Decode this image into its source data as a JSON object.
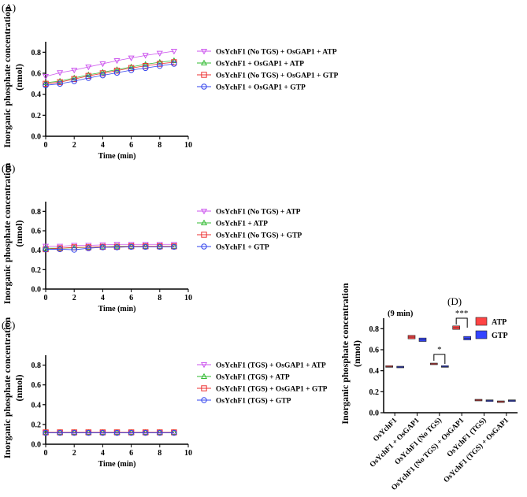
{
  "panel_labels": [
    "(A)",
    "(B)",
    "(C)",
    "(D)"
  ],
  "colors": {
    "purple": "#cc55ee",
    "green": "#33bb33",
    "red": "#ee3333",
    "blue": "#3344ee",
    "bar_red": "#ff4444",
    "bar_blue": "#3344ff"
  },
  "chart_data": [
    {
      "type": "line",
      "xlabel": "Time (min)",
      "ylabel": "Inorganic phosphate concentration (nmol)",
      "xlim": [
        0,
        10
      ],
      "ylim": [
        0,
        0.9
      ],
      "xticks": [
        0,
        2,
        4,
        6,
        8,
        10
      ],
      "yticks": [
        0.0,
        0.2,
        0.4,
        0.6,
        0.8
      ],
      "legend": "right",
      "x": [
        0,
        1,
        2,
        3,
        4,
        5,
        6,
        7,
        8,
        9
      ],
      "series": [
        {
          "name": "OsYchF1 (No TGS) + OsGAP1 + ATP",
          "marker": "triangle-down",
          "color": "#cc55ee",
          "values": [
            0.57,
            0.605,
            0.63,
            0.66,
            0.69,
            0.72,
            0.745,
            0.77,
            0.79,
            0.81
          ]
        },
        {
          "name": "OsYchF1 + OsGAP1 + ATP",
          "marker": "triangle-up",
          "color": "#33bb33",
          "values": [
            0.51,
            0.525,
            0.555,
            0.585,
            0.61,
            0.635,
            0.66,
            0.685,
            0.705,
            0.72
          ]
        },
        {
          "name": "OsYchF1 (No TGS) + OsGAP1 + GTP",
          "marker": "square",
          "color": "#ee3333",
          "values": [
            0.5,
            0.515,
            0.545,
            0.575,
            0.6,
            0.625,
            0.65,
            0.67,
            0.69,
            0.705
          ]
        },
        {
          "name": "OsYchF1 +  OsGAP1 + GTP",
          "marker": "circle",
          "color": "#3344ee",
          "values": [
            0.485,
            0.5,
            0.525,
            0.555,
            0.58,
            0.605,
            0.63,
            0.65,
            0.67,
            0.69
          ]
        }
      ]
    },
    {
      "type": "line",
      "xlabel": "Time (min)",
      "ylabel": "Inorganic phosphate concentration (nmol)",
      "xlim": [
        0,
        10
      ],
      "ylim": [
        0,
        0.9
      ],
      "xticks": [
        0,
        2,
        4,
        6,
        8,
        10
      ],
      "yticks": [
        0.0,
        0.2,
        0.4,
        0.6,
        0.8
      ],
      "legend": "right",
      "x": [
        0,
        1,
        2,
        3,
        4,
        5,
        6,
        7,
        8,
        9
      ],
      "series": [
        {
          "name": "OsYchF1 (No TGS) + ATP",
          "marker": "triangle-down",
          "color": "#cc55ee",
          "values": [
            0.44,
            0.44,
            0.45,
            0.45,
            0.455,
            0.46,
            0.46,
            0.46,
            0.46,
            0.46
          ]
        },
        {
          "name": "OsYchF1 + ATP",
          "marker": "triangle-up",
          "color": "#33bb33",
          "values": [
            0.42,
            0.42,
            0.425,
            0.43,
            0.435,
            0.44,
            0.44,
            0.44,
            0.44,
            0.44
          ]
        },
        {
          "name": "OsYchF1 (No TGS) + GTP",
          "marker": "square",
          "color": "#ee3333",
          "values": [
            0.41,
            0.42,
            0.43,
            0.43,
            0.435,
            0.435,
            0.44,
            0.44,
            0.44,
            0.44
          ]
        },
        {
          "name": "OsYchF1 + GTP",
          "marker": "circle",
          "color": "#3344ee",
          "values": [
            0.41,
            0.41,
            0.405,
            0.42,
            0.43,
            0.43,
            0.435,
            0.435,
            0.435,
            0.435
          ]
        }
      ]
    },
    {
      "type": "line",
      "xlabel": "Time (min)",
      "ylabel": "Inorganic phosphate concentration (nmol)",
      "xlim": [
        0,
        10
      ],
      "ylim": [
        0,
        0.9
      ],
      "xticks": [
        0,
        2,
        4,
        6,
        8,
        10
      ],
      "yticks": [
        0.0,
        0.2,
        0.4,
        0.6,
        0.8
      ],
      "legend": "right",
      "x": [
        0,
        1,
        2,
        3,
        4,
        5,
        6,
        7,
        8,
        9
      ],
      "series": [
        {
          "name": "OsYchF1 (TGS) + OsGAP1 + ATP",
          "marker": "triangle-down",
          "color": "#cc55ee",
          "values": [
            0.12,
            0.12,
            0.12,
            0.12,
            0.12,
            0.12,
            0.12,
            0.12,
            0.12,
            0.12
          ]
        },
        {
          "name": "OsYchF1 (TGS) + ATP",
          "marker": "triangle-up",
          "color": "#33bb33",
          "values": [
            0.12,
            0.12,
            0.12,
            0.12,
            0.12,
            0.12,
            0.12,
            0.12,
            0.12,
            0.12
          ]
        },
        {
          "name": "OsYchF1 (TGS) + OsGAP1 + GTP",
          "marker": "square",
          "color": "#ee3333",
          "values": [
            0.12,
            0.12,
            0.12,
            0.12,
            0.12,
            0.12,
            0.12,
            0.12,
            0.12,
            0.12
          ]
        },
        {
          "name": "OsYchF1 (TGS) + GTP",
          "marker": "circle",
          "color": "#3344ee",
          "values": [
            0.115,
            0.115,
            0.115,
            0.115,
            0.115,
            0.115,
            0.115,
            0.115,
            0.115,
            0.115
          ]
        }
      ]
    },
    {
      "type": "box",
      "title": "(9 min)",
      "ylabel": "Inorganic phosphate concentration (nmol)",
      "ylim": [
        0,
        0.9
      ],
      "yticks": [
        0.0,
        0.2,
        0.4,
        0.6,
        0.8
      ],
      "legend": "top-right",
      "categories": [
        "OsYchF1",
        "OsYchF1 + OsGAP1",
        "OsYchF1 (No TGS)",
        "OsYchF1 (No TGS) + OsGAP1",
        "OsYchF1 (TGS)",
        "OsYchF1 (TGS) + OsGAP1"
      ],
      "series": [
        {
          "name": "ATP",
          "color": "#ff4444",
          "values": [
            0.44,
            0.72,
            0.465,
            0.81,
            0.12,
            0.105
          ]
        },
        {
          "name": "GTP",
          "color": "#3344ff",
          "values": [
            0.435,
            0.695,
            0.44,
            0.71,
            0.115,
            0.115
          ]
        }
      ],
      "annotations": [
        {
          "category": "OsYchF1 (No TGS)",
          "text": "*"
        },
        {
          "category": "OsYchF1 (No TGS) + OsGAP1",
          "text": "***"
        }
      ]
    }
  ]
}
